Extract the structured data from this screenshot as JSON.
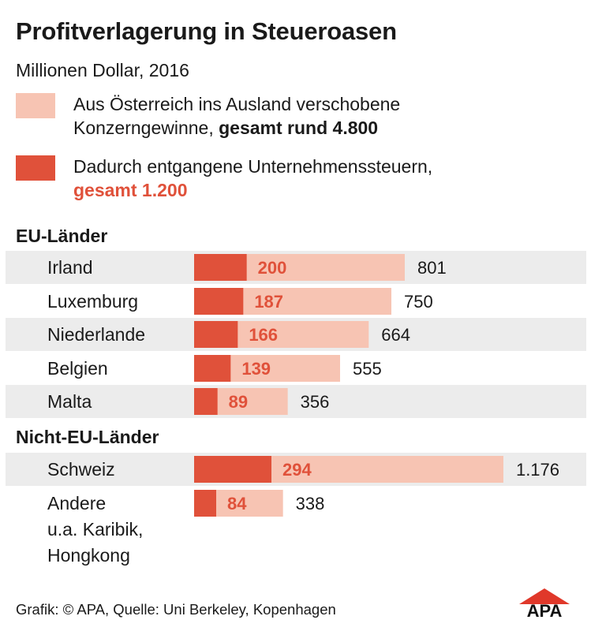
{
  "title": "Profitverlagerung in Steueroasen",
  "subtitle": "Millionen Dollar, 2016",
  "legend": {
    "profit_line1": "Aus Österreich ins Ausland verschobene",
    "profit_line2_prefix": "Konzerngewinne, ",
    "profit_line2_bold": "gesamt rund 4.800",
    "tax_line1": "Dadurch entgangene Unternehmenssteuern,",
    "tax_line2": "gesamt 1.200"
  },
  "colors": {
    "profit": "#f7c4b3",
    "tax": "#e0513a",
    "row_bg": "#ececec"
  },
  "sections": {
    "eu": "EU-Länder",
    "non_eu": "Nicht-EU-Länder"
  },
  "footer": "Grafik: © APA, Quelle: Uni Berkeley, Kopenhagen",
  "logo_text": "APA",
  "chart_data": {
    "type": "bar",
    "orientation": "horizontal",
    "unit": "Millionen Dollar",
    "groups": [
      {
        "name": "EU-Länder",
        "rows": [
          {
            "label": [
              "Irland"
            ],
            "profit": 801,
            "profit_label": "801",
            "tax": 200,
            "tax_label": "200"
          },
          {
            "label": [
              "Luxemburg"
            ],
            "profit": 750,
            "profit_label": "750",
            "tax": 187,
            "tax_label": "187"
          },
          {
            "label": [
              "Niederlande"
            ],
            "profit": 664,
            "profit_label": "664",
            "tax": 166,
            "tax_label": "166"
          },
          {
            "label": [
              "Belgien"
            ],
            "profit": 555,
            "profit_label": "555",
            "tax": 139,
            "tax_label": "139"
          },
          {
            "label": [
              "Malta"
            ],
            "profit": 356,
            "profit_label": "356",
            "tax": 89,
            "tax_label": "89"
          }
        ]
      },
      {
        "name": "Nicht-EU-Länder",
        "rows": [
          {
            "label": [
              "Schweiz"
            ],
            "profit": 1176,
            "profit_label": "1.176",
            "tax": 294,
            "tax_label": "294"
          },
          {
            "label": [
              "Andere",
              "u.a. Karibik,",
              "Hongkong"
            ],
            "profit": 338,
            "profit_label": "338",
            "tax": 84,
            "tax_label": "84"
          }
        ]
      }
    ]
  }
}
